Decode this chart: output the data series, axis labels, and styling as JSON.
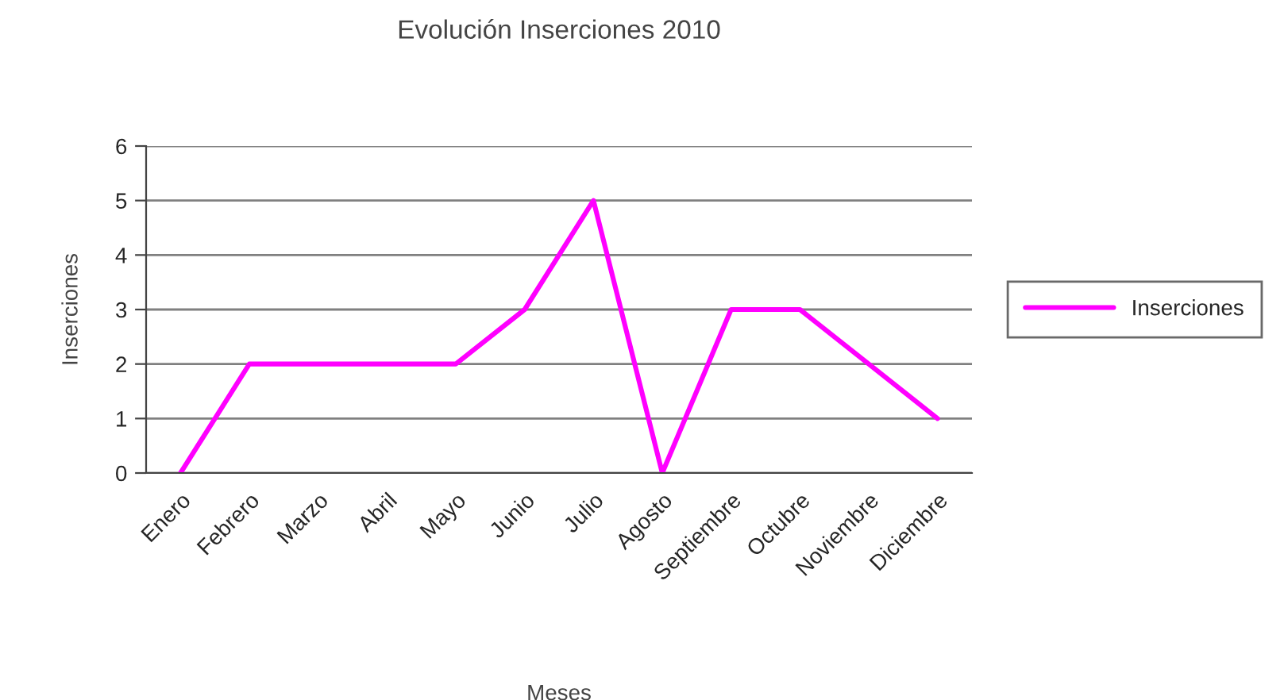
{
  "chart_data": {
    "type": "line",
    "title": "Evolución Inserciones 2010",
    "xlabel": "Meses",
    "ylabel": "Inserciones",
    "categories": [
      "Enero",
      "Febrero",
      "Marzo",
      "Abril",
      "Mayo",
      "Junio",
      "Julio",
      "Agosto",
      "Septiembre",
      "Octubre",
      "Noviembre",
      "Diciembre"
    ],
    "series": [
      {
        "name": "Inserciones",
        "color": "#ff00ff",
        "values": [
          0,
          2,
          2,
          2,
          2,
          3,
          5,
          0,
          3,
          3,
          2,
          1
        ]
      }
    ],
    "ylim": [
      0,
      6
    ],
    "yticks": [
      0,
      1,
      2,
      3,
      4,
      5,
      6
    ],
    "grid": "y",
    "legend": "right",
    "marker": "none",
    "line_style": "solid"
  }
}
